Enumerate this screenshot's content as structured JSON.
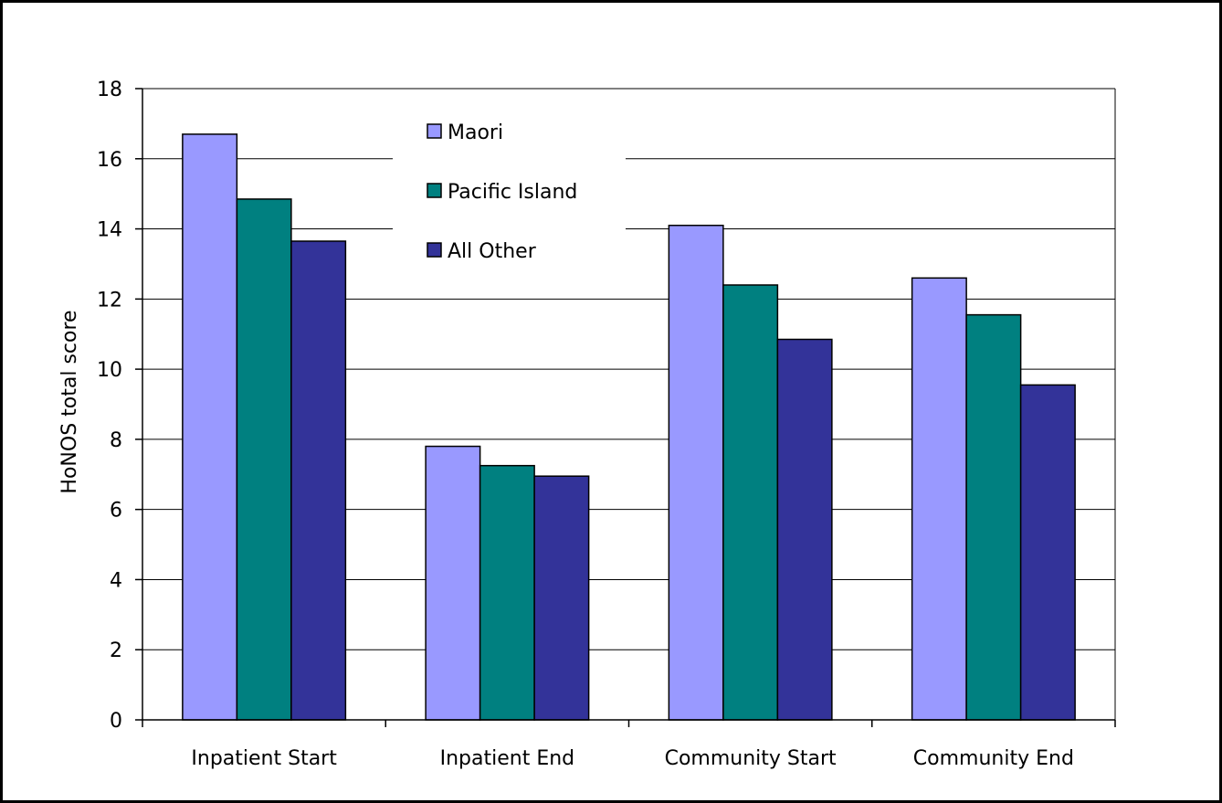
{
  "chart_data": {
    "type": "bar",
    "title": "",
    "xlabel": "",
    "ylabel": "HoNOS total score",
    "categories": [
      "Inpatient Start",
      "Inpatient End",
      "Community Start",
      "Community End"
    ],
    "series": [
      {
        "name": "Maori",
        "values": [
          16.7,
          7.8,
          14.1,
          12.6
        ],
        "color": "#9999ff"
      },
      {
        "name": "Pacific Island",
        "values": [
          14.85,
          7.25,
          12.4,
          11.55
        ],
        "color": "#008080"
      },
      {
        "name": "All Other",
        "values": [
          13.65,
          6.95,
          10.85,
          9.55
        ],
        "color": "#333399"
      }
    ],
    "ylim": [
      0,
      18
    ],
    "yticks": [
      0,
      2,
      4,
      6,
      8,
      10,
      12,
      14,
      16,
      18
    ],
    "grid": true,
    "legend_position": "top-center"
  }
}
